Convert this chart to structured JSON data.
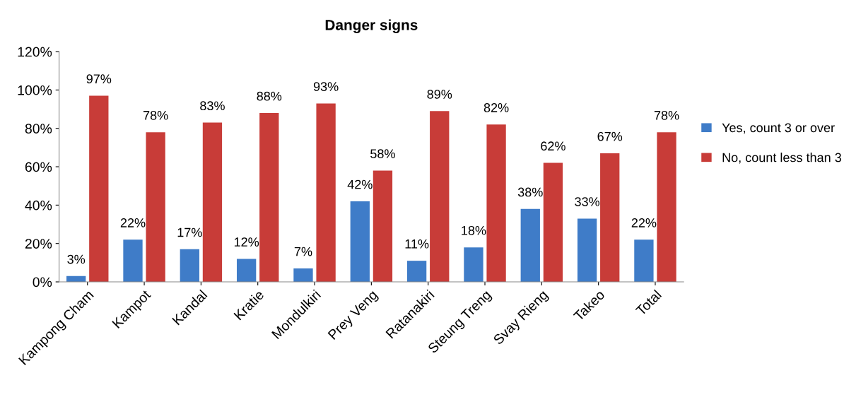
{
  "chart_data": {
    "type": "bar",
    "title": "Danger signs",
    "categories": [
      "Kampong Cham",
      "Kampot",
      "Kandal",
      "Kratie",
      "Mondulkiri",
      "Prey Veng",
      "Ratanakiri",
      "Steung Treng",
      "Svay Rieng",
      "Takeo",
      "Total"
    ],
    "series": [
      {
        "name": "Yes, count 3 or over",
        "color": "#3f7cc8",
        "values": [
          3,
          22,
          17,
          12,
          7,
          42,
          11,
          18,
          38,
          33,
          22
        ],
        "value_labels": [
          "3%",
          "22%",
          "17%",
          "12%",
          "7%",
          "42%",
          "11%",
          "18%",
          "38%",
          "33%",
          "22%"
        ]
      },
      {
        "name": "No, count less than 3",
        "color": "#c83c38",
        "values": [
          97,
          78,
          83,
          88,
          93,
          58,
          89,
          82,
          62,
          67,
          78
        ],
        "value_labels": [
          "97%",
          "78%",
          "83%",
          "88%",
          "93%",
          "58%",
          "89%",
          "82%",
          "62%",
          "67%",
          "78%"
        ]
      }
    ],
    "ylim": [
      0,
      120
    ],
    "yticks": [
      {
        "value": 0,
        "label": "0%"
      },
      {
        "value": 20,
        "label": "20%"
      },
      {
        "value": 40,
        "label": "40%"
      },
      {
        "value": 60,
        "label": "60%"
      },
      {
        "value": 80,
        "label": "80%"
      },
      {
        "value": 100,
        "label": "100%"
      },
      {
        "value": 120,
        "label": "120%"
      }
    ],
    "grid": false,
    "legend": "right"
  }
}
